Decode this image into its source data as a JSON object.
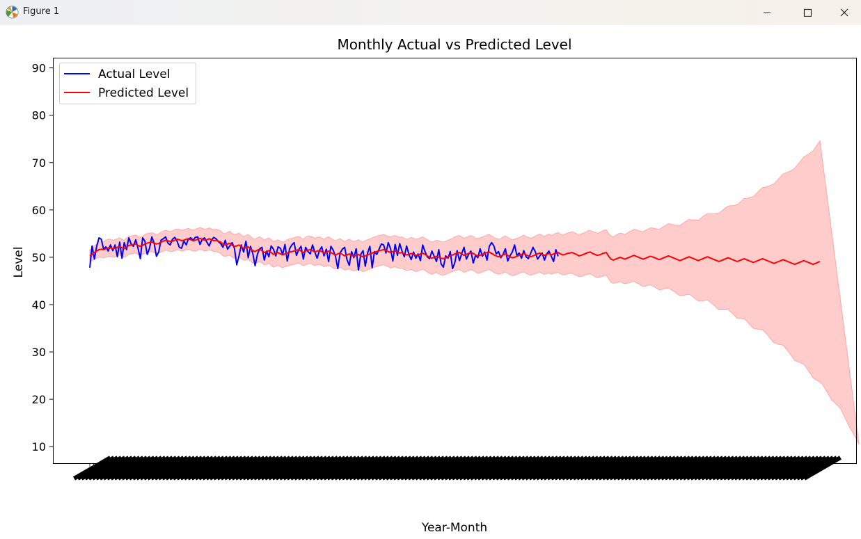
{
  "window": {
    "title": "Figure 1",
    "buttons": {
      "minimize": "minimize-icon",
      "maximize": "maximize-icon",
      "close": "close-icon"
    }
  },
  "colors": {
    "actual": "#0000ff",
    "predicted": "#ff0000",
    "band": "#ff9999",
    "axes": "#000000",
    "background": "#ffffff"
  },
  "chart_data": {
    "type": "line",
    "title": "Monthly Actual vs Predicted Level",
    "xlabel": "Year-Month",
    "ylabel": "Level",
    "ylim": [
      6.5,
      92
    ],
    "yticks": [
      10,
      20,
      30,
      40,
      50,
      60,
      70,
      80,
      90
    ],
    "x_tick_count": 200,
    "x_tick_labels_legible": false,
    "grid": false,
    "legend": "upper-left",
    "series": [
      {
        "name": "Actual Level",
        "color": "#0000ff",
        "start_index": 0,
        "values": [
          47.8,
          52.4,
          49.6,
          52.3,
          54.1,
          53.8,
          51.7,
          52.2,
          51.3,
          52.6,
          51.4,
          52.6,
          50.1,
          53.2,
          49.8,
          53.1,
          51.6,
          54.1,
          52.8,
          52.3,
          53.7,
          51.9,
          49.7,
          54.1,
          53.4,
          50.6,
          51.9,
          54.3,
          53.0,
          50.2,
          51.1,
          53.6,
          53.9,
          54.3,
          53.0,
          52.6,
          53.8,
          54.2,
          53.4,
          52.1,
          51.9,
          53.5,
          52.6,
          53.9,
          54.1,
          53.6,
          54.2,
          54.3,
          52.7,
          53.8,
          54.1,
          53.2,
          52.4,
          53.6,
          54.2,
          53.9,
          53.3,
          52.9,
          52.1,
          53.6,
          51.7,
          52.4,
          53.1,
          51.9,
          48.4,
          50.3,
          52.6,
          51.1,
          53.4,
          49.9,
          52.3,
          50.8,
          48.2,
          50.6,
          51.8,
          52.1,
          49.4,
          51.3,
          50.1,
          52.4,
          51.7,
          50.3,
          52.2,
          51.9,
          50.6,
          52.7,
          49.2,
          51.8,
          52.6,
          53.1,
          50.4,
          51.6,
          52.3,
          49.6,
          52.1,
          51.2,
          50.7,
          52.6,
          51.1,
          49.8,
          51.4,
          52.2,
          50.3,
          51.7,
          49.1,
          52.3,
          51.5,
          50.2,
          47.6,
          50.9,
          51.7,
          52.1,
          49.5,
          48.3,
          51.2,
          49.9,
          51.8,
          47.3,
          50.6,
          51.4,
          48.1,
          50.9,
          52.3,
          47.8,
          51.2,
          50.6,
          51.7,
          52.8,
          52.6,
          50.9,
          53.1,
          51.8,
          49.2,
          52.7,
          50.4,
          52.9,
          51.3,
          50.1,
          52.4,
          50.6,
          49.5,
          51.1,
          49.8,
          50.7,
          49.3,
          52.6,
          51.2,
          50.1,
          49.7,
          51.3,
          50.2,
          49.1,
          51.6,
          48.6,
          47.9,
          50.3,
          49.8,
          51.2,
          47.6,
          48.9,
          51.4,
          49.3,
          50.8,
          52.1,
          49.6,
          50.6,
          51.3,
          48.8,
          50.4,
          49.9,
          51.8,
          50.2,
          51.1,
          49.4,
          52.3,
          53.1,
          52.4,
          50.7,
          51.2,
          49.9,
          50.6,
          51.8,
          49.2,
          50.3,
          51.1,
          52.6,
          50.4,
          50.9,
          49.8,
          51.4,
          50.1,
          49.7,
          50.8,
          52.1,
          51.2,
          49.6,
          50.3,
          50.9,
          49.4,
          50.7,
          51.3,
          50.2,
          49.1,
          51.6,
          50.2
        ]
      },
      {
        "name": "Predicted Level",
        "color": "#ff0000",
        "start_index": 0,
        "values": [
          50.3,
          50.6,
          51.0,
          51.3,
          51.6,
          51.7,
          51.6,
          51.8,
          52.0,
          52.0,
          51.8,
          51.9,
          52.1,
          52.3,
          52.0,
          51.8,
          52.2,
          52.5,
          52.6,
          52.7,
          52.8,
          52.5,
          52.3,
          52.5,
          52.8,
          53.0,
          53.1,
          53.2,
          53.0,
          52.8,
          52.9,
          53.2,
          53.4,
          53.6,
          53.5,
          53.3,
          53.4,
          53.6,
          53.8,
          53.7,
          53.5,
          53.6,
          53.8,
          53.9,
          53.7,
          53.5,
          53.6,
          53.8,
          54.0,
          53.8,
          53.6,
          53.7,
          53.9,
          53.7,
          53.5,
          53.6,
          53.4,
          53.2,
          52.7,
          52.6,
          52.8,
          53.0,
          52.5,
          52.3,
          52.4,
          52.6,
          52.2,
          51.9,
          52.0,
          52.2,
          51.8,
          51.4,
          51.2,
          51.5,
          51.7,
          51.4,
          51.0,
          51.2,
          51.4,
          51.0,
          50.6,
          50.8,
          51.0,
          50.7,
          50.5,
          50.7,
          50.9,
          51.1,
          51.2,
          51.3,
          51.5,
          51.6,
          51.3,
          51.0,
          51.3,
          51.5,
          51.6,
          51.4,
          51.1,
          51.3,
          51.4,
          51.2,
          50.9,
          51.1,
          51.3,
          51.0,
          50.7,
          50.5,
          50.7,
          50.9,
          50.6,
          50.3,
          50.5,
          50.7,
          50.4,
          50.2,
          50.4,
          50.6,
          50.3,
          50.1,
          50.3,
          50.5,
          50.7,
          50.9,
          51.1,
          51.2,
          51.4,
          51.5,
          51.6,
          51.4,
          51.2,
          51.0,
          51.2,
          51.3,
          51.1,
          50.9,
          51.0,
          50.7,
          50.5,
          50.6,
          50.8,
          50.6,
          50.4,
          50.5,
          50.7,
          50.9,
          50.6,
          50.3,
          50.0,
          49.8,
          50.0,
          50.2,
          50.0,
          49.8,
          49.7,
          49.9,
          50.1,
          50.3,
          50.5,
          50.7,
          50.9,
          51.0,
          50.7,
          50.4,
          50.6,
          50.8,
          51.0,
          50.8,
          50.5,
          50.3,
          50.4,
          50.6,
          50.8,
          51.0,
          51.1,
          50.8,
          50.5,
          50.3,
          50.1,
          50.2,
          50.5,
          50.7,
          50.4,
          50.1,
          49.9,
          50.0,
          50.2,
          50.4,
          50.6,
          50.8,
          50.5,
          50.3,
          50.1,
          50.3,
          50.5,
          50.7,
          50.9,
          50.6,
          50.4,
          50.6,
          50.8,
          50.5,
          50.7,
          50.9,
          51.0,
          50.7,
          50.5,
          50.6,
          50.8,
          50.9,
          51.0,
          50.8,
          50.6,
          50.3,
          50.4,
          50.6,
          50.8,
          51.0,
          51.1,
          50.8,
          50.6,
          50.4,
          50.5,
          50.7,
          50.9,
          51.0,
          50.2,
          49.6,
          49.4,
          49.6,
          49.8,
          50.0,
          49.8,
          49.6,
          49.8,
          50.0,
          50.2,
          50.4,
          50.2,
          50.0,
          49.8,
          49.6,
          49.8,
          50.0,
          50.2,
          50.1,
          49.9,
          49.7,
          49.5,
          49.7,
          49.9,
          50.1,
          50.3,
          50.1,
          49.9,
          49.7,
          49.5,
          49.3,
          49.5,
          49.7,
          49.9,
          50.1,
          49.9,
          49.7,
          49.5,
          49.3,
          49.5,
          49.7,
          49.9,
          50.1,
          49.9,
          49.7,
          49.5,
          49.3,
          49.1,
          49.3,
          49.5,
          49.7,
          49.9,
          49.7,
          49.5,
          49.3,
          49.1,
          49.3,
          49.5,
          49.7,
          49.5,
          49.3,
          49.1,
          48.9,
          49.1,
          49.3,
          49.5,
          49.7,
          49.5,
          49.3,
          49.1,
          48.9,
          48.7,
          48.9,
          49.1,
          49.3,
          49.5,
          49.3,
          49.1,
          48.9,
          48.7,
          48.5,
          48.7,
          48.9,
          49.1,
          49.3,
          49.1,
          48.9,
          48.7,
          48.5,
          48.7,
          48.9,
          49.1
        ]
      }
    ],
    "confidence_band": {
      "series": "Predicted Level",
      "start_index": 0,
      "lower": [
        49.0,
        49.3,
        49.6,
        49.8,
        50.0,
        50.0,
        49.9,
        50.0,
        50.2,
        50.2,
        50.0,
        50.1,
        50.3,
        50.5,
        50.2,
        50.0,
        50.3,
        50.6,
        50.7,
        50.8,
        50.9,
        50.6,
        50.4,
        50.6,
        50.8,
        51.0,
        51.1,
        51.2,
        51.0,
        50.8,
        50.9,
        51.1,
        51.3,
        51.5,
        51.4,
        51.2,
        51.2,
        51.4,
        51.6,
        51.5,
        51.3,
        51.4,
        51.6,
        51.7,
        51.5,
        51.3,
        51.3,
        51.5,
        51.7,
        51.5,
        51.3,
        51.4,
        51.6,
        51.4,
        51.2,
        51.2,
        51.0,
        50.8,
        50.3,
        50.2,
        50.3,
        50.5,
        50.0,
        49.8,
        49.9,
        50.1,
        49.7,
        49.4,
        49.4,
        49.6,
        49.2,
        48.8,
        48.6,
        48.9,
        49.1,
        48.8,
        48.4,
        48.5,
        48.7,
        48.3,
        47.9,
        48.1,
        48.3,
        48.0,
        47.8,
        48.0,
        48.1,
        48.3,
        48.4,
        48.5,
        48.7,
        48.8,
        48.5,
        48.2,
        48.4,
        48.6,
        48.7,
        48.5,
        48.2,
        48.4,
        48.5,
        48.3,
        48.0,
        48.1,
        48.3,
        48.0,
        47.7,
        47.5,
        47.7,
        47.9,
        47.6,
        47.3,
        47.4,
        47.6,
        47.3,
        47.1,
        47.3,
        47.5,
        47.2,
        47.0,
        47.1,
        47.3,
        47.5,
        47.7,
        47.9,
        48.0,
        48.2,
        48.3,
        48.4,
        48.2,
        48.0,
        47.7,
        47.9,
        48.0,
        47.8,
        47.6,
        47.7,
        47.4,
        47.2,
        47.3,
        47.4,
        47.2,
        47.0,
        47.1,
        47.3,
        47.5,
        47.2,
        46.9,
        46.6,
        46.4,
        46.6,
        46.8,
        46.5,
        46.3,
        46.2,
        46.4,
        46.6,
        46.8,
        47.0,
        47.1,
        47.3,
        47.4,
        47.1,
        46.8,
        47.0,
        47.2,
        47.4,
        47.2,
        46.9,
        46.6,
        46.7,
        46.9,
        47.1,
        47.3,
        47.4,
        47.1,
        46.8,
        46.6,
        46.4,
        46.5,
        46.7,
        46.9,
        46.6,
        46.3,
        46.1,
        46.2,
        46.4,
        46.6,
        46.8,
        46.9,
        46.6,
        46.4,
        46.2,
        46.4,
        46.5,
        46.7,
        46.9,
        46.6,
        46.4,
        46.5,
        46.7,
        46.4,
        46.6,
        46.7,
        46.8,
        46.5,
        46.3,
        46.3,
        46.5,
        46.6,
        46.6,
        46.4,
        46.2,
        45.9,
        45.9,
        46.1,
        46.3,
        46.4,
        46.5,
        46.2,
        45.9,
        45.7,
        45.8,
        45.9,
        46.1,
        46.2,
        45.4,
        44.7,
        44.5,
        44.6,
        44.7,
        44.9,
        44.6,
        44.4,
        44.5,
        44.6,
        44.8,
        44.9,
        44.6,
        44.4,
        44.1,
        43.8,
        43.9,
        44.1,
        44.2,
        44.0,
        43.7,
        43.4,
        43.1,
        43.2,
        43.3,
        43.4,
        43.5,
        43.2,
        42.9,
        42.6,
        42.2,
        41.9,
        41.9,
        42.0,
        42.1,
        42.2,
        41.9,
        41.5,
        41.1,
        40.8,
        40.8,
        40.8,
        40.9,
        41.0,
        40.6,
        40.2,
        39.8,
        39.3,
        38.9,
        38.9,
        38.9,
        38.9,
        39.0,
        38.5,
        38.1,
        37.6,
        37.1,
        37.1,
        37.0,
        37.0,
        36.6,
        36.0,
        35.5,
        35.0,
        34.9,
        34.8,
        34.7,
        34.7,
        34.2,
        33.7,
        33.1,
        32.5,
        31.9,
        31.8,
        31.6,
        31.5,
        31.4,
        30.8,
        30.2,
        29.6,
        28.9,
        28.2,
        28.0,
        27.8,
        27.6,
        27.4,
        26.7,
        26.0,
        25.3,
        24.5,
        24.2,
        23.9,
        23.6,
        23.2,
        22.4,
        21.6,
        20.8,
        19.9,
        19.5,
        19.0,
        18.5,
        18.0,
        17.0,
        16.0,
        15.0,
        14.0,
        13.2,
        12.3,
        11.5,
        10.5
      ]
    }
  }
}
